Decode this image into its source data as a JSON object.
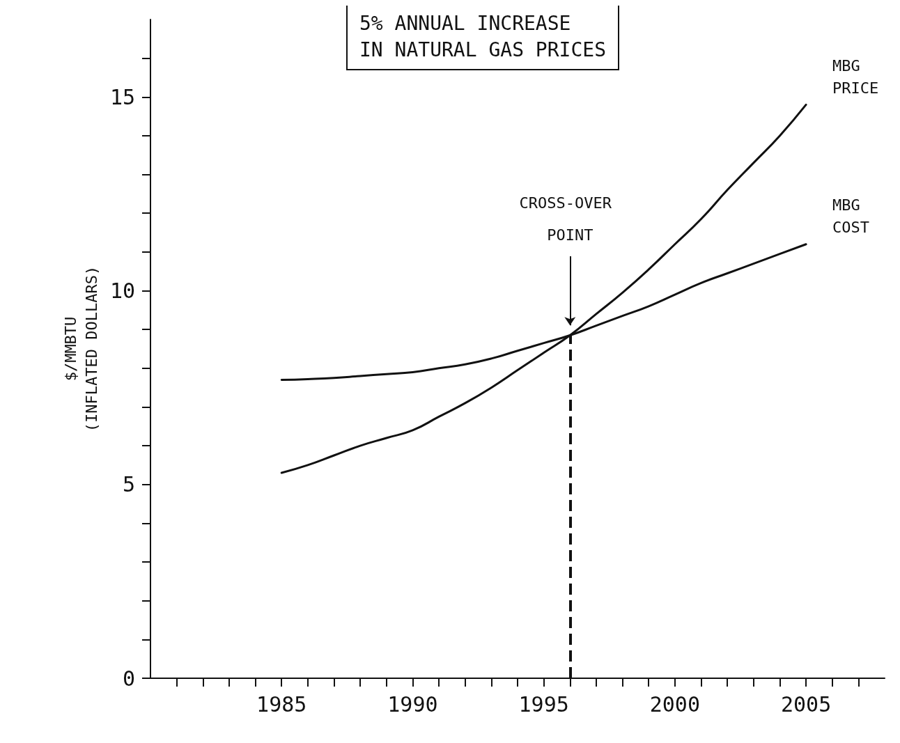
{
  "chart_data": {
    "type": "line",
    "title": "5% ANNUAL INCREASE\nIN NATURAL GAS PRICES",
    "ylabel": "$/MMBTU\n(INFLATED DOLLARS)",
    "x": [
      1985,
      1986,
      1987,
      1988,
      1989,
      1990,
      1991,
      1992,
      1993,
      1994,
      1995,
      1996,
      1997,
      1998,
      1999,
      2000,
      2001,
      2002,
      2003,
      2004,
      2005
    ],
    "series": [
      {
        "name": "MBG PRICE",
        "color": "#111111",
        "values": [
          5.3,
          5.5,
          5.75,
          6.0,
          6.2,
          6.4,
          6.75,
          7.1,
          7.5,
          7.95,
          8.4,
          8.85,
          9.4,
          9.95,
          10.55,
          11.2,
          11.85,
          12.6,
          13.3,
          14.0,
          14.8
        ]
      },
      {
        "name": "MBG COST",
        "color": "#111111",
        "values": [
          7.7,
          7.72,
          7.75,
          7.8,
          7.85,
          7.9,
          8.0,
          8.1,
          8.25,
          8.45,
          8.65,
          8.85,
          9.1,
          9.35,
          9.6,
          9.9,
          10.2,
          10.45,
          10.7,
          10.95,
          11.2
        ]
      }
    ],
    "xlim": [
      1980,
      2008
    ],
    "xticks": [
      {
        "value": 1981,
        "label": null
      },
      {
        "value": 1982,
        "label": null
      },
      {
        "value": 1983,
        "label": null
      },
      {
        "value": 1984,
        "label": null
      },
      1985,
      {
        "value": 1986,
        "label": null
      },
      {
        "value": 1987,
        "label": null
      },
      {
        "value": 1988,
        "label": null
      },
      {
        "value": 1989,
        "label": null
      },
      1990,
      {
        "value": 1991,
        "label": null
      },
      {
        "value": 1992,
        "label": null
      },
      {
        "value": 1993,
        "label": null
      },
      {
        "value": 1994,
        "label": null
      },
      1995,
      {
        "value": 1996,
        "label": null
      },
      {
        "value": 1997,
        "label": null
      },
      {
        "value": 1998,
        "label": null
      },
      {
        "value": 1999,
        "label": null
      },
      2000,
      {
        "value": 2001,
        "label": null
      },
      {
        "value": 2002,
        "label": null
      },
      {
        "value": 2003,
        "label": null
      },
      {
        "value": 2004,
        "label": null
      },
      2005,
      {
        "value": 2006,
        "label": null
      },
      {
        "value": 2007,
        "label": null
      }
    ],
    "ylim": [
      0,
      17
    ],
    "yticks": [
      0,
      {
        "value": 1,
        "label": null
      },
      {
        "value": 2,
        "label": null
      },
      {
        "value": 3,
        "label": null
      },
      {
        "value": 4,
        "label": null
      },
      5,
      {
        "value": 6,
        "label": null
      },
      {
        "value": 7,
        "label": null
      },
      {
        "value": 8,
        "label": null
      },
      {
        "value": 9,
        "label": null
      },
      10,
      {
        "value": 11,
        "label": null
      },
      {
        "value": 12,
        "label": null
      },
      {
        "value": 13,
        "label": null
      },
      {
        "value": 14,
        "label": null
      },
      15,
      {
        "value": 16,
        "label": null
      }
    ],
    "annotations": [
      "CROSS-OVER POINT"
    ],
    "ref_lines": [
      {
        "axis": "x",
        "value": 1996,
        "line_style": "dashed"
      }
    ],
    "grid": false,
    "legend": false,
    "marker": "none",
    "line_style": "solid"
  }
}
